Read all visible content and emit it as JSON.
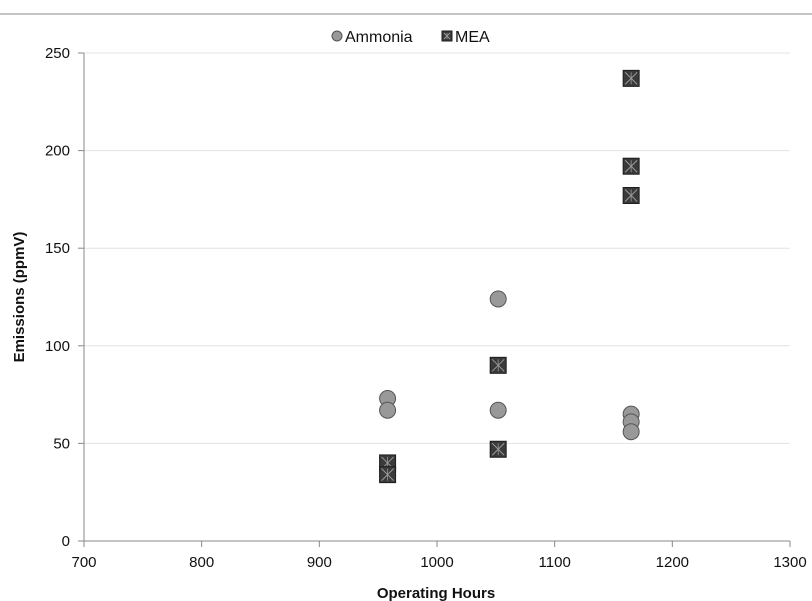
{
  "chart_data": {
    "type": "scatter",
    "xlabel": "Operating Hours",
    "ylabel": "Emissions (ppmV)",
    "xlim": [
      700,
      1300
    ],
    "ylim": [
      0,
      250
    ],
    "xticks": [
      "700",
      "800",
      "900",
      "1000",
      "1100",
      "1200",
      "1300"
    ],
    "yticks": [
      "0",
      "50",
      "100",
      "150",
      "200",
      "250"
    ],
    "grid": "horizontal",
    "legend_position": "top-center",
    "series": [
      {
        "name": "Ammonia",
        "marker": "circle",
        "color": "#999999",
        "points": [
          {
            "x": 958,
            "y": 73
          },
          {
            "x": 958,
            "y": 67
          },
          {
            "x": 1052,
            "y": 124
          },
          {
            "x": 1052,
            "y": 67
          },
          {
            "x": 1165,
            "y": 65
          },
          {
            "x": 1165,
            "y": 61
          },
          {
            "x": 1165,
            "y": 56
          }
        ]
      },
      {
        "name": "MEA",
        "marker": "square-x",
        "color": "#3a3a3a",
        "points": [
          {
            "x": 958,
            "y": 40
          },
          {
            "x": 958,
            "y": 34
          },
          {
            "x": 1052,
            "y": 90
          },
          {
            "x": 1052,
            "y": 47
          },
          {
            "x": 1165,
            "y": 237
          },
          {
            "x": 1165,
            "y": 192
          },
          {
            "x": 1165,
            "y": 177
          }
        ]
      }
    ]
  }
}
